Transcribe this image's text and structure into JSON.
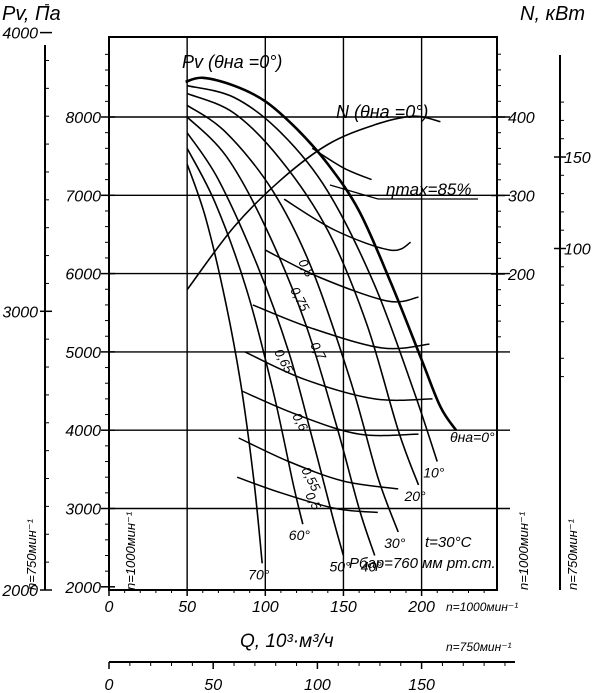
{
  "chart_data": {
    "type": "line",
    "title": "",
    "xlabel": "Q, 10³·м³/ч",
    "ylabel_left_outer": "Pv, Па",
    "ylabel_right_outer": "N, кВт",
    "speed_label_1000": "n=1000мин⁻¹",
    "speed_label_750": "n=750мин⁻¹",
    "x_ticks_1000": [
      "0",
      "50",
      "100",
      "150",
      "200"
    ],
    "x_ticks_750": [
      "0",
      "50",
      "100",
      "150"
    ],
    "xlim_1000": [
      0,
      250
    ],
    "pv_ticks_1000": [
      "2000",
      "3000",
      "4000",
      "5000",
      "6000",
      "7000",
      "8000"
    ],
    "pv_ticks_750": [
      "2000",
      "3000",
      "4000"
    ],
    "ylim_pv_1000": [
      2000,
      9000
    ],
    "n_ticks_1000": [
      "200",
      "300",
      "400"
    ],
    "n_ticks_750": [
      "100",
      "150"
    ],
    "pv_curve_label": "Pv (θна =0°)",
    "n_curve_label": "N (θна =0°)",
    "eta_max_label": "ηmax=85%",
    "conditions_t": "t=30°C",
    "conditions_p": "Pбар=760 мм рт.ст.",
    "pv_vane_curves": [
      {
        "angle": "θна=0°",
        "points": [
          [
            49,
            8450
          ],
          [
            60,
            8500
          ],
          [
            80,
            8400
          ],
          [
            100,
            8200
          ],
          [
            120,
            7850
          ],
          [
            140,
            7400
          ],
          [
            160,
            6800
          ],
          [
            180,
            5900
          ],
          [
            200,
            4900
          ],
          [
            212,
            4300
          ],
          [
            222,
            4000
          ]
        ]
      },
      {
        "angle": "10°",
        "points": [
          [
            50,
            8400
          ],
          [
            80,
            8250
          ],
          [
            110,
            7800
          ],
          [
            140,
            7050
          ],
          [
            170,
            5850
          ],
          [
            195,
            4500
          ],
          [
            210,
            3600
          ]
        ]
      },
      {
        "angle": "20°",
        "points": [
          [
            50,
            8300
          ],
          [
            80,
            8050
          ],
          [
            110,
            7450
          ],
          [
            140,
            6550
          ],
          [
            165,
            5350
          ],
          [
            185,
            4000
          ],
          [
            198,
            3300
          ]
        ]
      },
      {
        "angle": "30°",
        "points": [
          [
            50,
            8150
          ],
          [
            75,
            7800
          ],
          [
            105,
            7050
          ],
          [
            130,
            6050
          ],
          [
            155,
            4600
          ],
          [
            172,
            3400
          ],
          [
            185,
            2700
          ]
        ]
      },
      {
        "angle": "40°",
        "points": [
          [
            50,
            8000
          ],
          [
            75,
            7500
          ],
          [
            100,
            6600
          ],
          [
            125,
            5400
          ],
          [
            145,
            4100
          ],
          [
            160,
            3000
          ],
          [
            170,
            2400
          ]
        ]
      },
      {
        "angle": "50°",
        "points": [
          [
            50,
            7800
          ],
          [
            70,
            7200
          ],
          [
            95,
            6100
          ],
          [
            115,
            5000
          ],
          [
            130,
            3900
          ],
          [
            143,
            2900
          ],
          [
            150,
            2400
          ]
        ]
      },
      {
        "angle": "60°",
        "points": [
          [
            50,
            7600
          ],
          [
            68,
            6900
          ],
          [
            88,
            5800
          ],
          [
            105,
            4500
          ],
          [
            118,
            3300
          ],
          [
            124,
            2800
          ]
        ]
      },
      {
        "angle": "70°",
        "points": [
          [
            50,
            7400
          ],
          [
            62,
            6700
          ],
          [
            75,
            5600
          ],
          [
            85,
            4500
          ],
          [
            93,
            3300
          ],
          [
            98,
            2300
          ]
        ]
      }
    ],
    "efficiency_curves": [
      {
        "eta": "0,5",
        "points": [
          [
            82,
            3400
          ],
          [
            110,
            3200
          ],
          [
            145,
            3000
          ],
          [
            172,
            2950
          ]
        ]
      },
      {
        "eta": "0,55",
        "points": [
          [
            83,
            3900
          ],
          [
            115,
            3600
          ],
          [
            150,
            3350
          ],
          [
            185,
            3250
          ]
        ]
      },
      {
        "eta": "0,6",
        "points": [
          [
            85,
            4500
          ],
          [
            120,
            4200
          ],
          [
            160,
            3950
          ],
          [
            198,
            3950
          ]
        ]
      },
      {
        "eta": "0,65",
        "points": [
          [
            87,
            5000
          ],
          [
            125,
            4650
          ],
          [
            170,
            4400
          ],
          [
            207,
            4400
          ]
        ]
      },
      {
        "eta": "0,7",
        "points": [
          [
            92,
            5600
          ],
          [
            130,
            5300
          ],
          [
            175,
            5050
          ],
          [
            205,
            5100
          ]
        ]
      },
      {
        "eta": "0,75",
        "points": [
          [
            100,
            6300
          ],
          [
            135,
            5950
          ],
          [
            178,
            5650
          ],
          [
            198,
            5700
          ]
        ]
      },
      {
        "eta": "0,8",
        "points": [
          [
            112,
            6950
          ],
          [
            145,
            6550
          ],
          [
            180,
            6300
          ],
          [
            193,
            6400
          ]
        ]
      },
      {
        "eta": "0,85",
        "points": [
          [
            130,
            7600
          ],
          [
            150,
            7350
          ],
          [
            168,
            7200
          ]
        ]
      }
    ],
    "power_curve": {
      "label": "N (θна =0°)",
      "points_kw": [
        [
          50,
          180
        ],
        [
          80,
          260
        ],
        [
          110,
          320
        ],
        [
          140,
          365
        ],
        [
          170,
          390
        ],
        [
          195,
          401
        ],
        [
          212,
          394
        ]
      ]
    },
    "vane_angle_labels": [
      "θна=0°",
      "10°",
      "20°",
      "30°",
      "40°",
      "50°",
      "60°",
      "70°"
    ],
    "eta_labels": [
      "0,8",
      "0,75",
      "0,7",
      "0,65",
      "0,6",
      "0,55",
      "0,5"
    ],
    "grid": true
  }
}
